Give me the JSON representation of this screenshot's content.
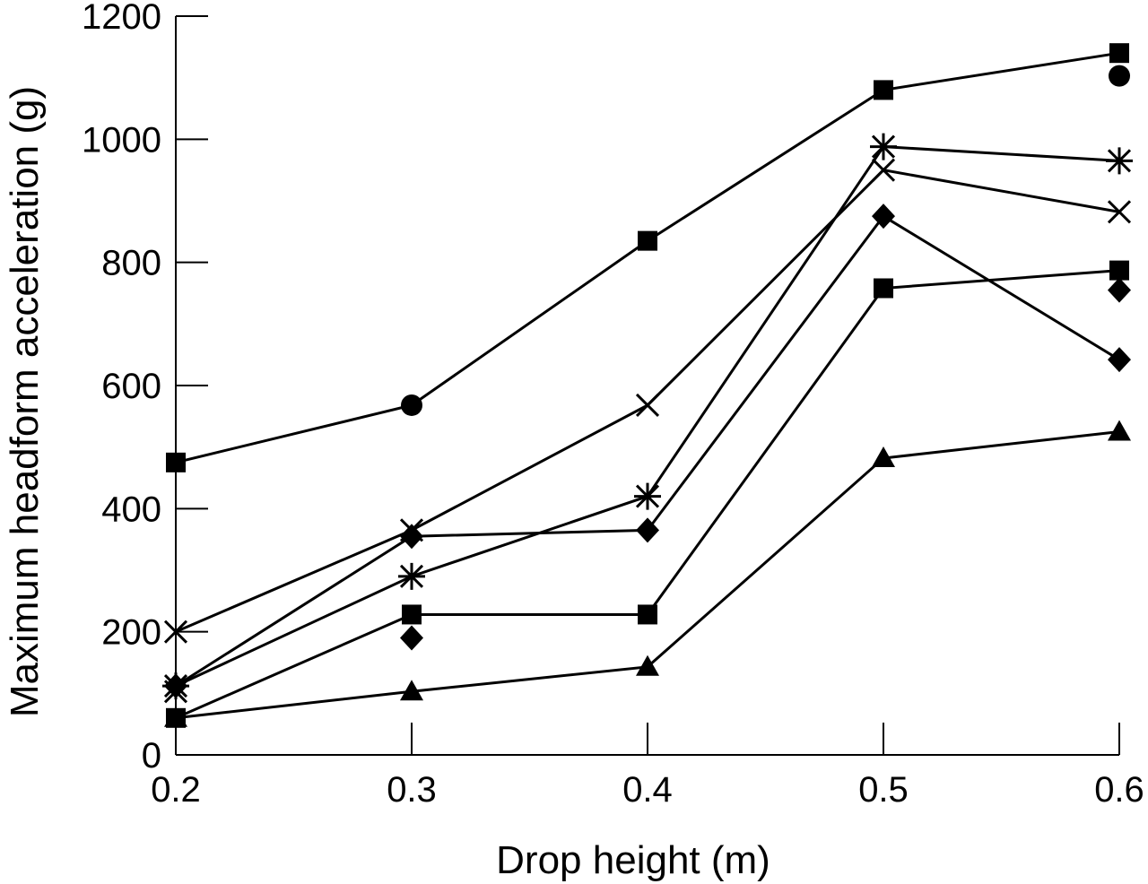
{
  "chart_data": {
    "type": "line",
    "xlabel": "Drop height (m)",
    "ylabel": "Maximum headform acceleration (g)",
    "xlim": [
      0.2,
      0.6
    ],
    "ylim": [
      0,
      1200
    ],
    "x_ticks": [
      "0.2",
      "0.3",
      "0.4",
      "0.5",
      "0.6"
    ],
    "y_ticks": [
      "0",
      "200",
      "400",
      "600",
      "800",
      "1000",
      "1200"
    ],
    "x_tick_values": [
      0.2,
      0.3,
      0.4,
      0.5,
      0.6
    ],
    "y_tick_values": [
      0,
      200,
      400,
      600,
      800,
      1000,
      1200
    ],
    "grid": false,
    "legend": "none",
    "series": [
      {
        "marker": "square",
        "points": [
          {
            "x": 0.2,
            "y": 475,
            "m": "square"
          },
          {
            "x": 0.3,
            "y": 568,
            "m": "circle"
          },
          {
            "x": 0.4,
            "y": 835,
            "m": "square"
          },
          {
            "x": 0.5,
            "y": 1080,
            "m": "square"
          },
          {
            "x": 0.6,
            "y": 1140,
            "m": "square"
          }
        ]
      },
      {
        "marker": "star",
        "points": [
          {
            "x": 0.2,
            "y": 112,
            "m": "star"
          },
          {
            "x": 0.3,
            "y": 290,
            "m": "star"
          },
          {
            "x": 0.4,
            "y": 420,
            "m": "star"
          },
          {
            "x": 0.5,
            "y": 988,
            "m": "star"
          },
          {
            "x": 0.6,
            "y": 965,
            "m": "star"
          }
        ]
      },
      {
        "marker": "cross",
        "points": [
          {
            "x": 0.2,
            "y": 200,
            "m": "cross"
          },
          {
            "x": 0.3,
            "y": 365,
            "m": "cross"
          },
          {
            "x": 0.4,
            "y": 568,
            "m": "cross"
          },
          {
            "x": 0.5,
            "y": 950,
            "m": "cross"
          },
          {
            "x": 0.6,
            "y": 882,
            "m": "cross"
          }
        ]
      },
      {
        "marker": "diamond",
        "points": [
          {
            "x": 0.2,
            "y": 112,
            "m": "diamond"
          },
          {
            "x": 0.3,
            "y": 355,
            "m": "diamond"
          },
          {
            "x": 0.4,
            "y": 365,
            "m": "diamond"
          },
          {
            "x": 0.5,
            "y": 875,
            "m": "diamond"
          },
          {
            "x": 0.6,
            "y": 642,
            "m": "diamond"
          }
        ]
      },
      {
        "marker": "square",
        "points": [
          {
            "x": 0.2,
            "y": 60,
            "m": "square"
          },
          {
            "x": 0.3,
            "y": 228,
            "m": "square"
          },
          {
            "x": 0.4,
            "y": 228,
            "m": "square"
          },
          {
            "x": 0.5,
            "y": 758,
            "m": "square"
          },
          {
            "x": 0.6,
            "y": 787,
            "m": "square"
          }
        ]
      },
      {
        "marker": "triangle",
        "points": [
          {
            "x": 0.2,
            "y": 60,
            "m": "triangle"
          },
          {
            "x": 0.3,
            "y": 103,
            "m": "triangle"
          },
          {
            "x": 0.4,
            "y": 143,
            "m": "triangle"
          },
          {
            "x": 0.5,
            "y": 482,
            "m": "triangle"
          },
          {
            "x": 0.6,
            "y": 525,
            "m": "triangle"
          }
        ]
      }
    ],
    "extra_points": [
      {
        "x": 0.2,
        "y": 103,
        "m": "cross"
      },
      {
        "x": 0.3,
        "y": 190,
        "m": "diamond"
      },
      {
        "x": 0.6,
        "y": 1103,
        "m": "circle"
      },
      {
        "x": 0.6,
        "y": 755,
        "m": "diamond"
      }
    ]
  }
}
